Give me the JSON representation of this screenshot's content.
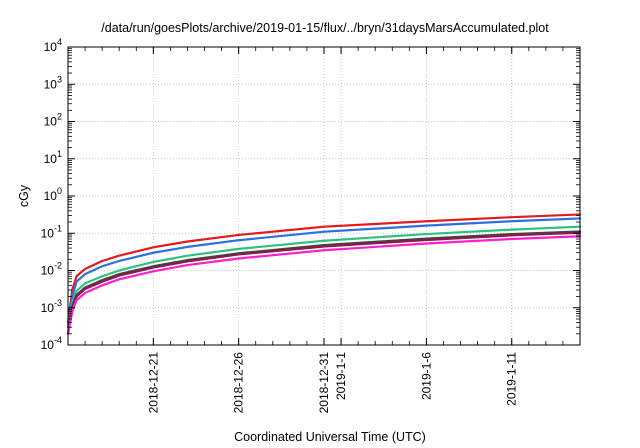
{
  "chart_data": {
    "type": "line",
    "title": "/data/run/goesPlots/archive/2019-01-15/flux/../bryn/31daysMarsAccumulated.plot",
    "xlabel": "Coordinated Universal Time (UTC)",
    "ylabel": "cGy",
    "y_scale": "log",
    "ylim": [
      0.0001,
      10000
    ],
    "xlim": [
      "2018-12-16",
      "2019-01-15"
    ],
    "grid": true,
    "y_ticks": [
      {
        "base": "10",
        "exp": "-4"
      },
      {
        "base": "10",
        "exp": "-3"
      },
      {
        "base": "10",
        "exp": "-2"
      },
      {
        "base": "10",
        "exp": "-1"
      },
      {
        "base": "10",
        "exp": "0"
      },
      {
        "base": "10",
        "exp": "1"
      },
      {
        "base": "10",
        "exp": "2"
      },
      {
        "base": "10",
        "exp": "3"
      },
      {
        "base": "10",
        "exp": "4"
      }
    ],
    "x_ticks": [
      {
        "date": "2018-12-21",
        "label": "2018-12-21"
      },
      {
        "date": "2018-12-26",
        "label": "2018-12-26"
      },
      {
        "date": "2018-12-31",
        "label": "2018-12-31"
      },
      {
        "date": "2019-01-01",
        "label": "2019-1-1"
      },
      {
        "date": "2019-01-06",
        "label": "2019-1-6"
      },
      {
        "date": "2019-01-11",
        "label": "2019-1-11"
      }
    ],
    "x": [
      "2018-12-16",
      "2018-12-16 06:00",
      "2018-12-16 12:00",
      "2018-12-17",
      "2018-12-18",
      "2018-12-19",
      "2018-12-21",
      "2018-12-23",
      "2018-12-26",
      "2018-12-31",
      "2019-01-06",
      "2019-01-11",
      "2019-01-15"
    ],
    "series": [
      {
        "color": "#e41a1c",
        "values": [
          0.0004,
          0.003,
          0.007,
          0.011,
          0.018,
          0.025,
          0.042,
          0.06,
          0.09,
          0.15,
          0.21,
          0.27,
          0.32
        ]
      },
      {
        "color": "#2b6fe0",
        "values": [
          0.0003,
          0.002,
          0.005,
          0.008,
          0.013,
          0.018,
          0.03,
          0.043,
          0.065,
          0.11,
          0.16,
          0.21,
          0.25
        ]
      },
      {
        "color": "#2ec27e",
        "values": [
          0.0003,
          0.0014,
          0.0028,
          0.0045,
          0.007,
          0.01,
          0.017,
          0.025,
          0.038,
          0.063,
          0.095,
          0.125,
          0.15
        ]
      },
      {
        "color": "#444444",
        "values": [
          0.0002,
          0.0011,
          0.0022,
          0.0035,
          0.0055,
          0.008,
          0.013,
          0.019,
          0.029,
          0.048,
          0.072,
          0.095,
          0.112
        ]
      },
      {
        "color": "#8b1a4a",
        "values": [
          0.0002,
          0.001,
          0.002,
          0.0032,
          0.005,
          0.0073,
          0.012,
          0.0175,
          0.027,
          0.044,
          0.066,
          0.088,
          0.103
        ]
      },
      {
        "color": "#ff1fd0",
        "values": [
          0.0002,
          0.0008,
          0.0016,
          0.0025,
          0.004,
          0.0058,
          0.0095,
          0.014,
          0.021,
          0.035,
          0.053,
          0.07,
          0.083
        ]
      }
    ]
  }
}
